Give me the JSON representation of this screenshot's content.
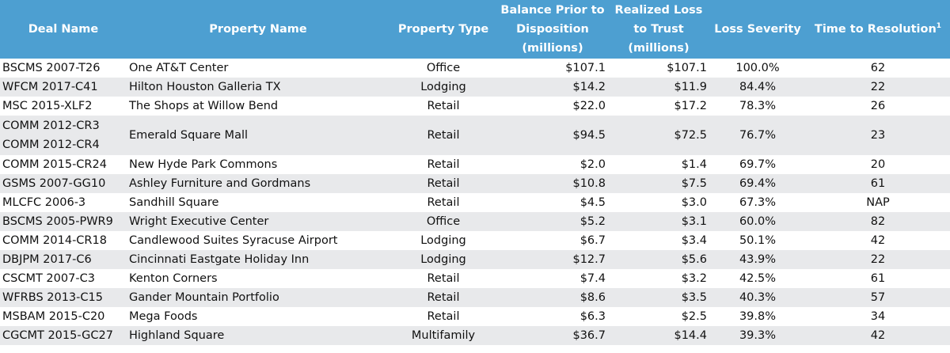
{
  "headers": {
    "deal": "Deal Name",
    "property": "Property Name",
    "type": "Property Type",
    "balance": [
      "Balance Prior to",
      "Disposition",
      "(millions)"
    ],
    "loss": [
      "Realized Loss",
      "to Trust",
      "(millions)"
    ],
    "severity": "Loss Severity",
    "time": "Time to Resolution",
    "time_footnote": "1"
  },
  "rows": [
    {
      "deal": [
        "BSCMS 2007-T26"
      ],
      "property": "One AT&T Center",
      "type": "Office",
      "balance": "$107.1",
      "loss": "$107.1",
      "severity": "100.0%",
      "time": "62"
    },
    {
      "deal": [
        "WFCM 2017-C41"
      ],
      "property": "Hilton Houston Galleria TX",
      "type": "Lodging",
      "balance": "$14.2",
      "loss": "$11.9",
      "severity": "84.4%",
      "time": "22"
    },
    {
      "deal": [
        "MSC 2015-XLF2"
      ],
      "property": "The Shops at Willow Bend",
      "type": "Retail",
      "balance": "$22.0",
      "loss": "$17.2",
      "severity": "78.3%",
      "time": "26"
    },
    {
      "deal": [
        "COMM 2012-CR3",
        "COMM 2012-CR4"
      ],
      "property": "Emerald Square Mall",
      "type": "Retail",
      "balance": "$94.5",
      "loss": "$72.5",
      "severity": "76.7%",
      "time": "23"
    },
    {
      "deal": [
        "COMM 2015-CR24"
      ],
      "property": "New Hyde Park Commons",
      "type": "Retail",
      "balance": "$2.0",
      "loss": "$1.4",
      "severity": "69.7%",
      "time": "20"
    },
    {
      "deal": [
        "GSMS 2007-GG10"
      ],
      "property": "Ashley Furniture and Gordmans",
      "type": "Retail",
      "balance": "$10.8",
      "loss": "$7.5",
      "severity": "69.4%",
      "time": "61"
    },
    {
      "deal": [
        "MLCFC 2006-3"
      ],
      "property": "Sandhill Square",
      "type": "Retail",
      "balance": "$4.5",
      "loss": "$3.0",
      "severity": "67.3%",
      "time": "NAP"
    },
    {
      "deal": [
        "BSCMS 2005-PWR9"
      ],
      "property": "Wright Executive Center",
      "type": "Office",
      "balance": "$5.2",
      "loss": "$3.1",
      "severity": "60.0%",
      "time": "82"
    },
    {
      "deal": [
        "COMM 2014-CR18"
      ],
      "property": "Candlewood Suites Syracuse Airport",
      "type": "Lodging",
      "balance": "$6.7",
      "loss": "$3.4",
      "severity": "50.1%",
      "time": "42"
    },
    {
      "deal": [
        "DBJPM 2017-C6"
      ],
      "property": "Cincinnati Eastgate Holiday Inn",
      "type": "Lodging",
      "balance": "$12.7",
      "loss": "$5.6",
      "severity": "43.9%",
      "time": "22"
    },
    {
      "deal": [
        "CSCMT 2007-C3"
      ],
      "property": "Kenton Corners",
      "type": "Retail",
      "balance": "$7.4",
      "loss": "$3.2",
      "severity": "42.5%",
      "time": "61"
    },
    {
      "deal": [
        "WFRBS 2013-C15"
      ],
      "property": "Gander Mountain Portfolio",
      "type": "Retail",
      "balance": "$8.6",
      "loss": "$3.5",
      "severity": "40.3%",
      "time": "57"
    },
    {
      "deal": [
        "MSBAM 2015-C20"
      ],
      "property": "Mega Foods",
      "type": "Retail",
      "balance": "$6.3",
      "loss": "$2.5",
      "severity": "39.8%",
      "time": "34"
    },
    {
      "deal": [
        "CGCMT 2015-GC27"
      ],
      "property": "Highland Square",
      "type": "Multifamily",
      "balance": "$36.7",
      "loss": "$14.4",
      "severity": "39.3%",
      "time": "42"
    }
  ],
  "colors": {
    "header_bg": "#4d9fd1",
    "header_text": "#ffffff",
    "row_alt": "#e8e9eb",
    "row": "#ffffff"
  }
}
